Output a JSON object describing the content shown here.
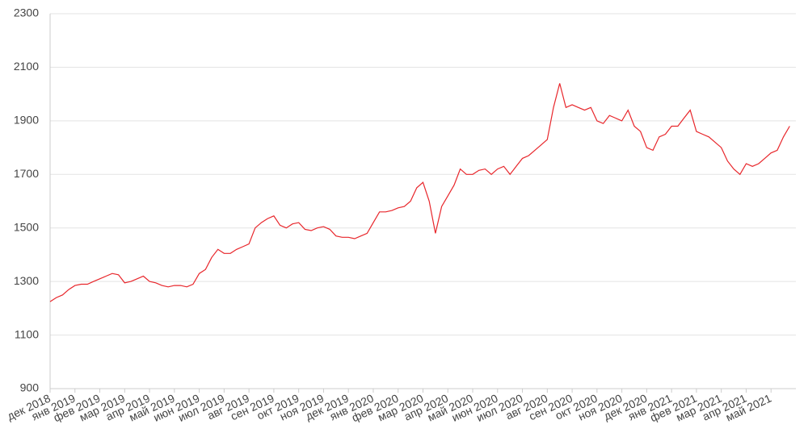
{
  "chart_data": {
    "type": "line",
    "categories": [
      "дек 2018",
      null,
      null,
      null,
      "янв 2019",
      null,
      null,
      null,
      "фев 2019",
      null,
      null,
      null,
      "мар 2019",
      null,
      null,
      null,
      "апр 2019",
      null,
      null,
      null,
      "май 2019",
      null,
      null,
      null,
      "июн 2019",
      null,
      null,
      null,
      "июл 2019",
      null,
      null,
      null,
      "авг 2019",
      null,
      null,
      null,
      "сен 2019",
      null,
      null,
      null,
      "окт 2019",
      null,
      null,
      null,
      "ноя 2019",
      null,
      null,
      null,
      "дек 2019",
      null,
      null,
      null,
      "янв 2020",
      null,
      null,
      null,
      "фев 2020",
      null,
      null,
      null,
      "мар 2020",
      null,
      null,
      null,
      "апр 2020",
      null,
      null,
      null,
      "май 2020",
      null,
      null,
      null,
      "июн 2020",
      null,
      null,
      null,
      "июл 2020",
      null,
      null,
      null,
      "авг 2020",
      null,
      null,
      null,
      "сен 2020",
      null,
      null,
      null,
      "окт 2020",
      null,
      null,
      null,
      "ноя 2020",
      null,
      null,
      null,
      "дек 2020",
      null,
      null,
      null,
      "янв 2021",
      null,
      null,
      null,
      "фев 2021",
      null,
      null,
      null,
      "мар 2021",
      null,
      null,
      null,
      "апр 2021",
      null,
      null,
      null,
      "май 2021",
      null,
      null,
      null
    ],
    "values": [
      1225,
      1240,
      1250,
      1270,
      1285,
      1290,
      1290,
      1300,
      1310,
      1320,
      1330,
      1325,
      1295,
      1300,
      1310,
      1320,
      1300,
      1295,
      1285,
      1280,
      1285,
      1285,
      1280,
      1290,
      1330,
      1345,
      1390,
      1420,
      1405,
      1405,
      1420,
      1430,
      1440,
      1500,
      1520,
      1535,
      1545,
      1510,
      1500,
      1515,
      1520,
      1495,
      1490,
      1500,
      1505,
      1495,
      1470,
      1465,
      1465,
      1460,
      1470,
      1480,
      1520,
      1560,
      1560,
      1565,
      1575,
      1580,
      1600,
      1650,
      1670,
      1600,
      1480,
      1580,
      1620,
      1660,
      1720,
      1700,
      1700,
      1715,
      1720,
      1700,
      1720,
      1730,
      1700,
      1730,
      1760,
      1770,
      1790,
      1810,
      1830,
      1950,
      2040,
      1950,
      1960,
      1950,
      1940,
      1950,
      1900,
      1890,
      1920,
      1910,
      1900,
      1940,
      1880,
      1860,
      1800,
      1790,
      1840,
      1850,
      1880,
      1880,
      1910,
      1940,
      1860,
      1850,
      1840,
      1820,
      1800,
      1750,
      1720,
      1700,
      1740,
      1730,
      1740,
      1760,
      1780,
      1790,
      1840,
      1880
    ],
    "color": "#e8262b",
    "ylim": [
      900,
      2300
    ],
    "yticks": [
      900,
      1100,
      1300,
      1500,
      1700,
      1900,
      2100,
      2300
    ],
    "grid": true
  }
}
